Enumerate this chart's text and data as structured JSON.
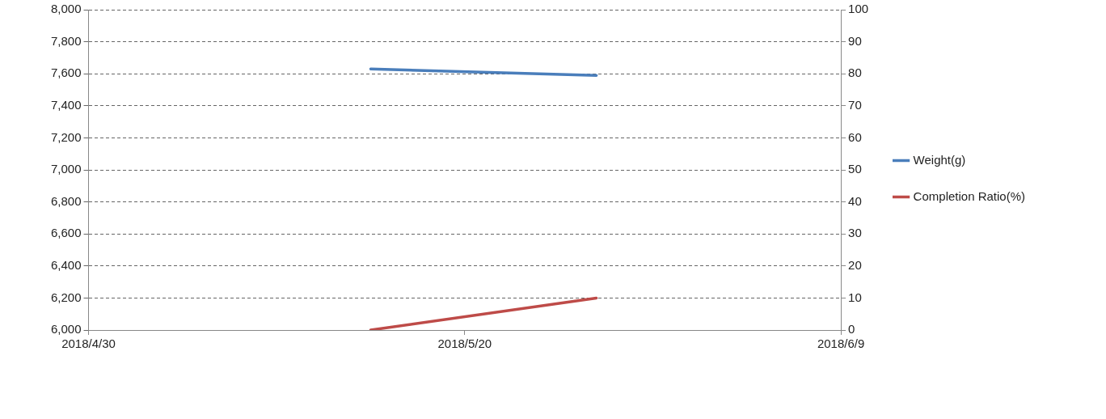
{
  "chart_data": {
    "type": "line",
    "x": [
      "2018-05-15",
      "2018-05-27"
    ],
    "series": [
      {
        "name": "Weight(g)",
        "color": "#4a7ebb",
        "values": [
          7630,
          7590
        ]
      },
      {
        "name": "Completion Ratio(%)",
        "color": "#be4b48",
        "values": [
          0,
          10
        ],
        "axis": "y2"
      }
    ],
    "xlim": [
      "2018-04-30",
      "2018-06-09"
    ],
    "xticks": [
      {
        "value": "2018-04-30",
        "label": "2018/4/30"
      },
      {
        "value": "2018-05-20",
        "label": "2018/5/20"
      },
      {
        "value": "2018-06-09",
        "label": "2018/6/9"
      }
    ],
    "ylim": [
      6000,
      8000
    ],
    "yticks": [
      {
        "value": 6000,
        "label": "6,000"
      },
      {
        "value": 6200,
        "label": "6,200"
      },
      {
        "value": 6400,
        "label": "6,400"
      },
      {
        "value": 6600,
        "label": "6,600"
      },
      {
        "value": 6800,
        "label": "6,800"
      },
      {
        "value": 7000,
        "label": "7,000"
      },
      {
        "value": 7200,
        "label": "7,200"
      },
      {
        "value": 7400,
        "label": "7,400"
      },
      {
        "value": 7600,
        "label": "7,600"
      },
      {
        "value": 7800,
        "label": "7,800"
      },
      {
        "value": 8000,
        "label": "8,000"
      }
    ],
    "y2lim": [
      0,
      100
    ],
    "y2ticks": [
      0,
      10,
      20,
      30,
      40,
      50,
      60,
      70,
      80,
      90,
      100
    ],
    "grid": "y",
    "legend": "right",
    "marker": "none",
    "line_style": "solid"
  }
}
